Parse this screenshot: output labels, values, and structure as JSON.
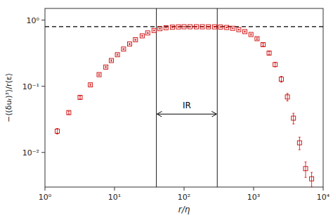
{
  "chart_data": {
    "type": "scatter",
    "xlabel": "r/η",
    "ylabel": "−⟨(δuᵣ)³⟩/r⟨ε⟩",
    "log": true,
    "grid": false,
    "marker": "square",
    "color": "#cc0000",
    "xlim": [
      1.0,
      10000.0
    ],
    "ylim": [
      0.003,
      1.5
    ],
    "xticks": [
      {
        "value": 1,
        "label": "10⁰"
      },
      {
        "value": 10,
        "label": "10¹"
      },
      {
        "value": 100,
        "label": "10²"
      },
      {
        "value": 1000,
        "label": "10³"
      },
      {
        "value": 10000,
        "label": "10⁴"
      }
    ],
    "yticks": [
      {
        "value": 0.01,
        "label": "10⁻²"
      },
      {
        "value": 0.1,
        "label": "10⁻¹"
      },
      {
        "value": 1,
        "label": "10⁰"
      }
    ],
    "x": [
      1.5,
      2.2,
      3.2,
      4.5,
      6.0,
      7.5,
      9.0,
      11.0,
      13.5,
      16.5,
      20.0,
      25.0,
      30.0,
      37.0,
      45.0,
      55.0,
      68.0,
      83.0,
      100.0,
      122.0,
      150.0,
      183.0,
      224.0,
      274.0,
      335.0,
      410.0,
      500.0,
      612.0,
      748.0,
      915.0,
      1120.0,
      1370.0,
      1670.0,
      2040.0,
      2500.0,
      3060.0,
      3740.0,
      4570.0,
      5590.0,
      6830.0
    ],
    "values": [
      0.021,
      0.04,
      0.068,
      0.105,
      0.15,
      0.195,
      0.245,
      0.3,
      0.365,
      0.435,
      0.505,
      0.578,
      0.64,
      0.698,
      0.742,
      0.768,
      0.782,
      0.79,
      0.793,
      0.793,
      0.793,
      0.793,
      0.792,
      0.791,
      0.786,
      0.774,
      0.752,
      0.718,
      0.67,
      0.606,
      0.524,
      0.425,
      0.318,
      0.213,
      0.128,
      0.069,
      0.033,
      0.014,
      0.0057,
      0.004
    ],
    "errors": [
      0.002,
      0.002,
      0.003,
      0.003,
      0.004,
      0.005,
      0.006,
      0.007,
      0.008,
      0.009,
      0.01,
      0.011,
      0.011,
      0.011,
      0.011,
      0.011,
      0.011,
      0.011,
      0.011,
      0.011,
      0.011,
      0.011,
      0.011,
      0.011,
      0.011,
      0.011,
      0.011,
      0.012,
      0.013,
      0.014,
      0.016,
      0.018,
      0.018,
      0.016,
      0.013,
      0.009,
      0.006,
      0.003,
      0.0015,
      0.001
    ],
    "reference_lines": {
      "y": [
        0.795
      ],
      "x": [
        40.0,
        300.0
      ]
    },
    "annotations": [
      {
        "text": "IR",
        "x_from": 40.0,
        "x_to": 300.0,
        "y": 0.038
      }
    ]
  }
}
